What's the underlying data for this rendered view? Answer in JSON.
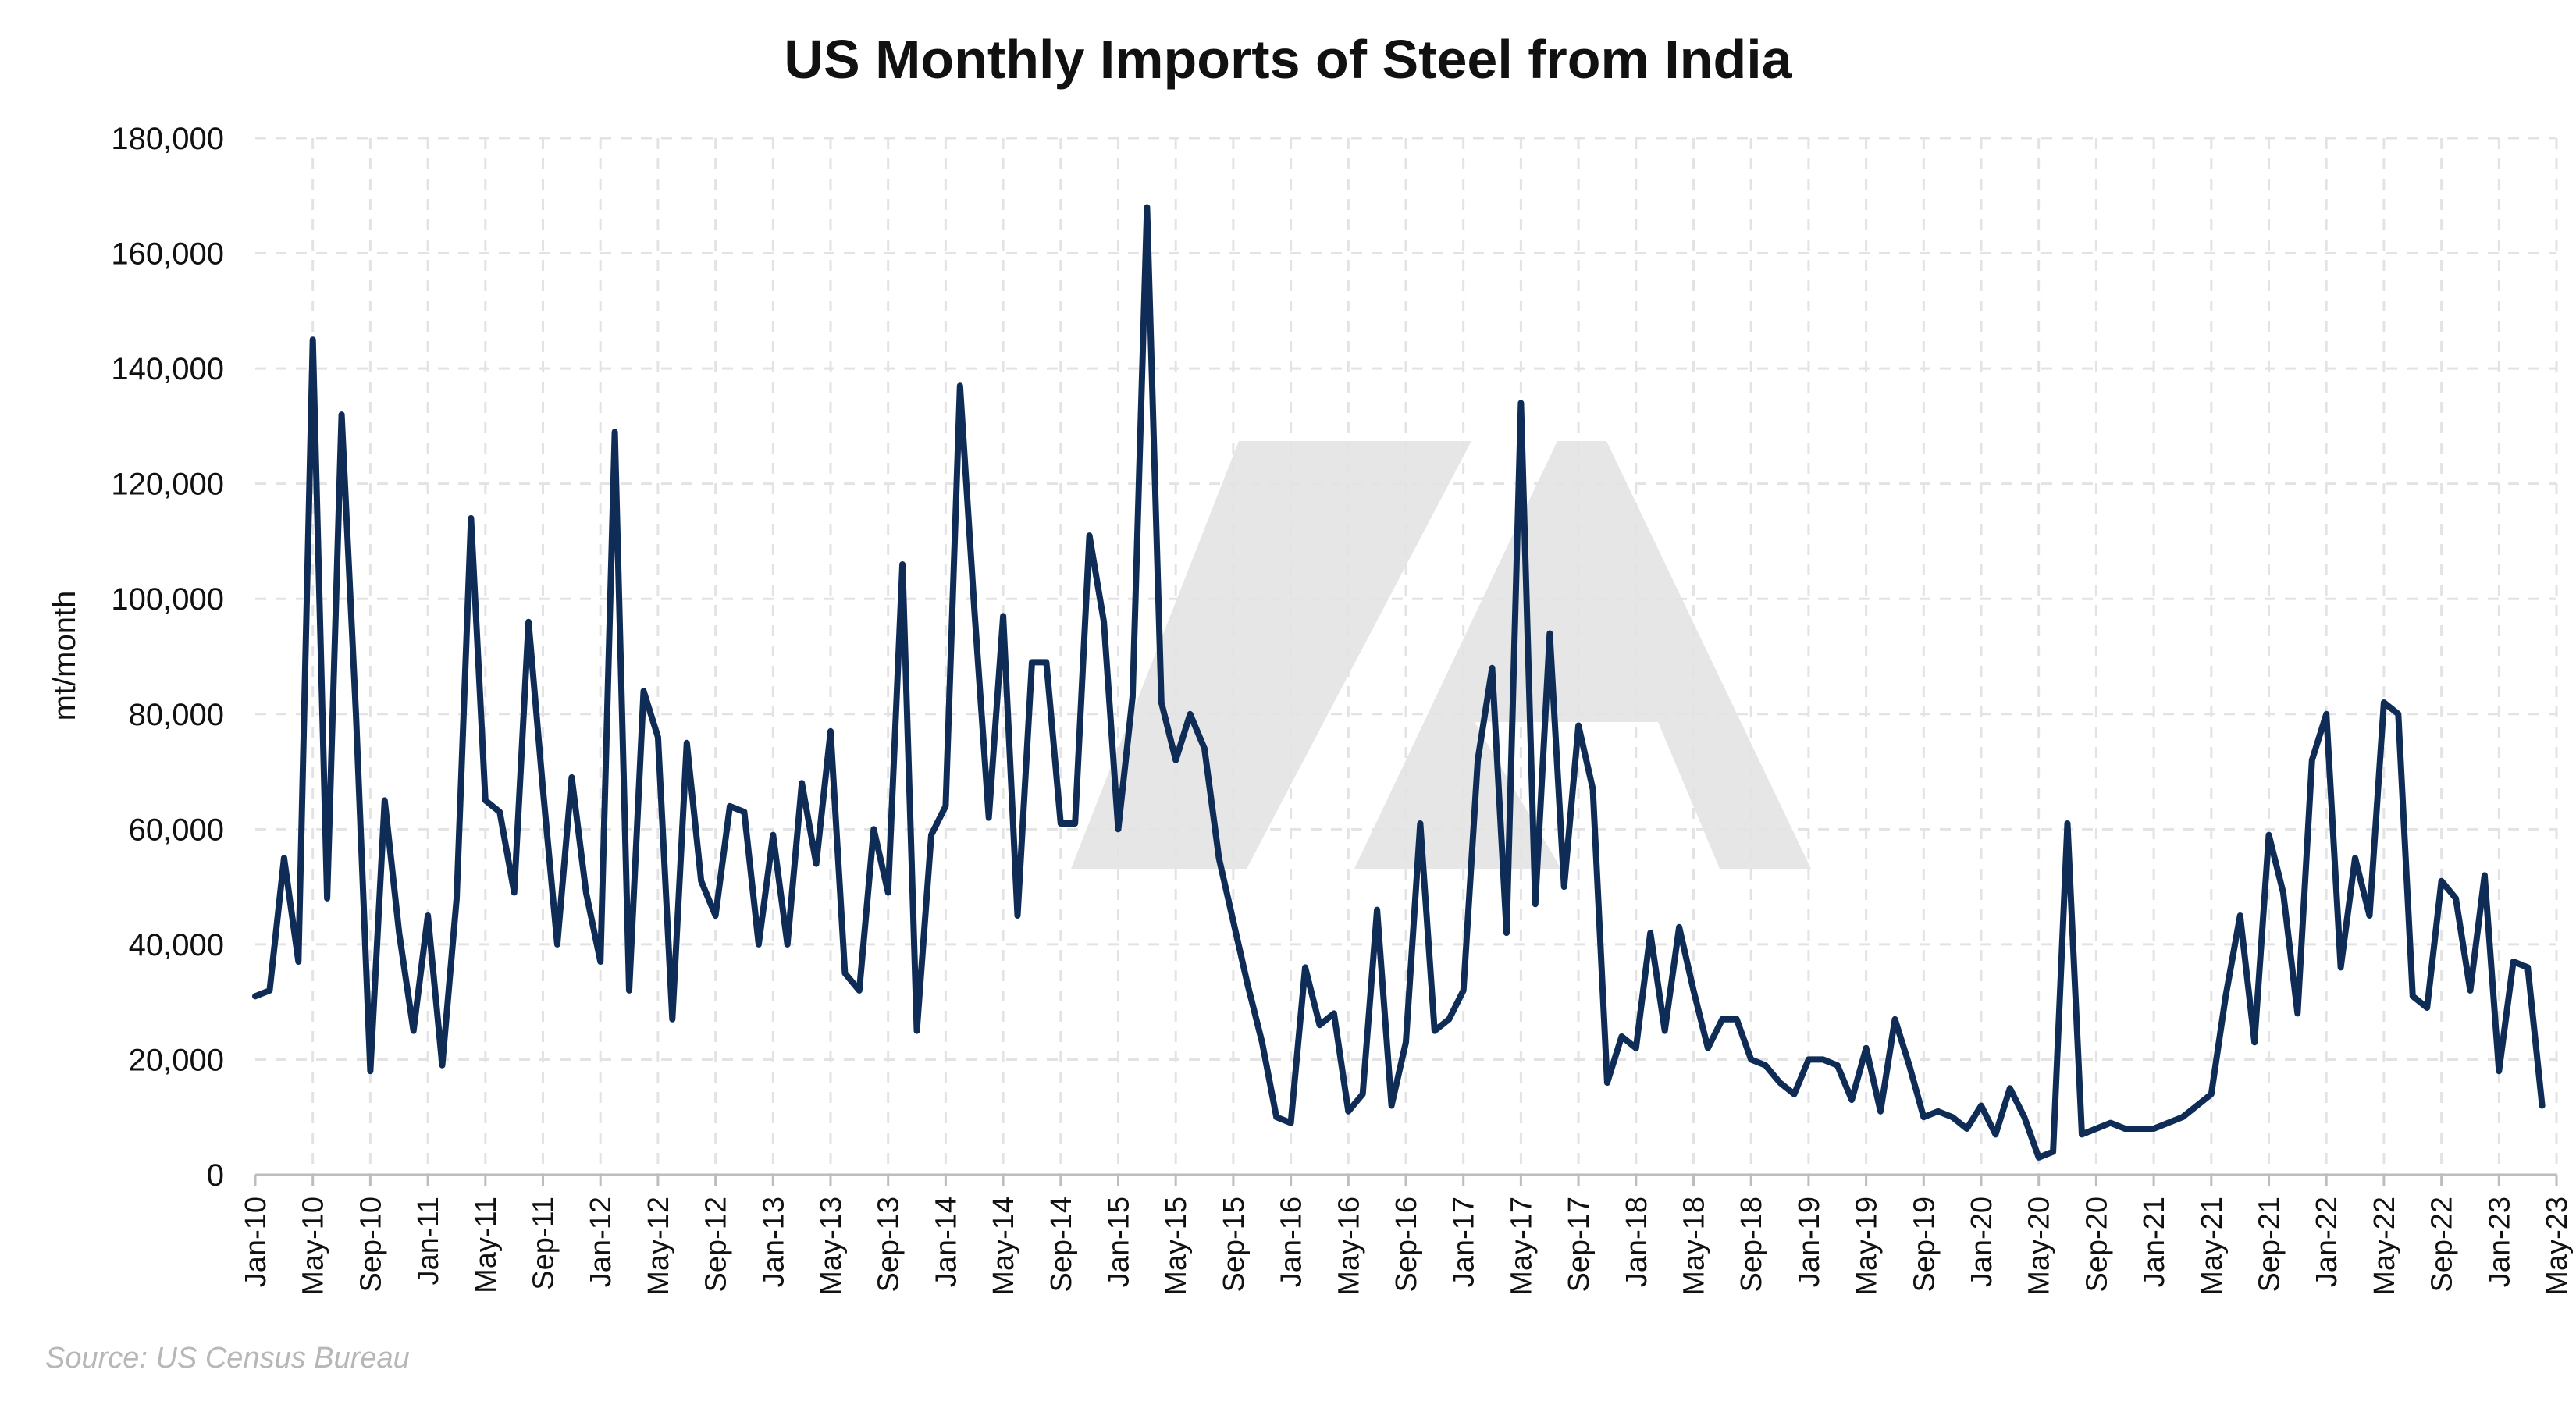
{
  "colors": {
    "series": "#0f2c56",
    "watermark": "#e6e6e6",
    "source": "#b7b7b7"
  },
  "chart_data": {
    "type": "line",
    "title": "US Monthly Imports of Steel from India",
    "xlabel": "",
    "ylabel": "mt/month",
    "ylim": [
      0,
      180000
    ],
    "yticks": [
      0,
      20000,
      40000,
      60000,
      80000,
      100000,
      120000,
      140000,
      160000,
      180000
    ],
    "ytick_labels": [
      "0",
      "20,000",
      "40,000",
      "60,000",
      "80,000",
      "100,000",
      "120,000",
      "140,000",
      "160,000",
      "180,000"
    ],
    "xtick_labels": [
      "Jan-10",
      "May-10",
      "Sep-10",
      "Jan-11",
      "May-11",
      "Sep-11",
      "Jan-12",
      "May-12",
      "Sep-12",
      "Jan-13",
      "May-13",
      "Sep-13",
      "Jan-14",
      "May-14",
      "Sep-14",
      "Jan-15",
      "May-15",
      "Sep-15",
      "Jan-16",
      "May-16",
      "Sep-16",
      "Jan-17",
      "May-17",
      "Sep-17",
      "Jan-18",
      "May-18",
      "Sep-18",
      "Jan-19",
      "May-19",
      "Sep-19",
      "Jan-20",
      "May-20",
      "Sep-20",
      "Jan-21",
      "May-21",
      "Sep-21",
      "Jan-22",
      "May-22",
      "Sep-22",
      "Jan-23",
      "May-23"
    ],
    "grid": true,
    "legend": "none",
    "x_start": "Jan-10",
    "x_end": "Apr-23",
    "series": [
      {
        "values": [
          31000,
          32000,
          55000,
          37000,
          145000,
          48000,
          132000,
          80000,
          18000,
          65000,
          42000,
          25000,
          45000,
          19000,
          48000,
          114000,
          65000,
          63000,
          49000,
          96000,
          67000,
          40000,
          69000,
          49000,
          37000,
          129000,
          32000,
          84000,
          76000,
          27000,
          75000,
          51000,
          45000,
          64000,
          63000,
          40000,
          59000,
          40000,
          68000,
          54000,
          77000,
          35000,
          32000,
          60000,
          49000,
          106000,
          25000,
          59000,
          64000,
          137000,
          98000,
          62000,
          97000,
          45000,
          89000,
          89000,
          61000,
          61000,
          111000,
          96000,
          60000,
          83000,
          168000,
          82000,
          72000,
          80000,
          74000,
          55000,
          44000,
          33000,
          23000,
          10000,
          9000,
          36000,
          26000,
          28000,
          11000,
          14000,
          46000,
          12000,
          23000,
          61000,
          25000,
          27000,
          32000,
          72000,
          88000,
          42000,
          134000,
          47000,
          94000,
          50000,
          78000,
          67000,
          16000,
          24000,
          22000,
          42000,
          25000,
          43000,
          32000,
          22000,
          27000,
          27000,
          20000,
          19000,
          16000,
          14000,
          20000,
          20000,
          19000,
          13000,
          22000,
          11000,
          27000,
          19000,
          10000,
          11000,
          10000,
          8000,
          12000,
          7000,
          15000,
          10000,
          3000,
          4000,
          61000,
          7000,
          8000,
          9000,
          8000,
          8000,
          8000,
          9000,
          10000,
          12000,
          14000,
          31000,
          45000,
          23000,
          59000,
          49000,
          28000,
          72000,
          80000,
          36000,
          55000,
          45000,
          82000,
          80000,
          31000,
          29000,
          51000,
          48000,
          32000,
          52000,
          18000,
          37000,
          36000,
          12000
        ]
      }
    ],
    "source": "Source: US Census Bureau"
  }
}
